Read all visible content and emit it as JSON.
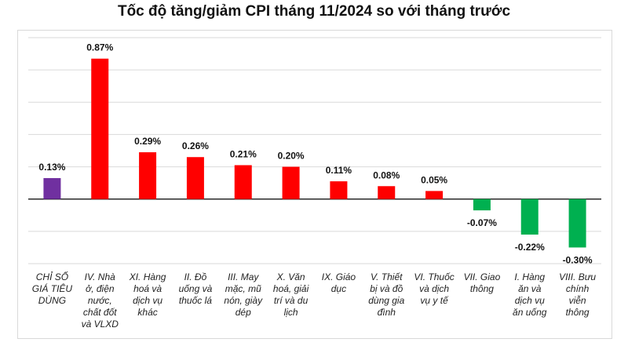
{
  "chart_data": {
    "type": "bar",
    "title": "Tốc độ tăng/giảm CPI tháng 11/2024 so với tháng trước",
    "categories": [
      "CHỈ SỐ GIÁ TIÊU DÙNG",
      "IV. Nhà ở, điện nước, chất đốt và VLXD",
      "XI. Hàng hoá và dịch vụ khác",
      "II. Đồ uống và thuốc lá",
      "III. May mặc, mũ nón, giày dép",
      "X. Văn hoá, giải trí và du lịch",
      "IX. Giáo dục",
      "V. Thiết bị và đồ dùng gia đình",
      "VI. Thuốc và dịch vụ y tế",
      "VII. Giao thông",
      "I. Hàng ăn và dịch vụ ăn uống",
      "VIII. Bưu chính viễn thông"
    ],
    "category_lines": [
      [
        "CHỈ SỐ",
        "GIÁ TIÊU",
        "DÙNG"
      ],
      [
        "IV. Nhà",
        "ở, điện",
        "nước,",
        "chất đốt",
        "và VLXD"
      ],
      [
        "XI. Hàng",
        "hoá và",
        "dịch vụ",
        "khác"
      ],
      [
        "II. Đồ",
        "uống và",
        "thuốc lá"
      ],
      [
        "III. May",
        "mặc, mũ",
        "nón, giày",
        "dép"
      ],
      [
        "X. Văn",
        "hoá, giải",
        "trí và du",
        "lịch"
      ],
      [
        "IX. Giáo",
        "dục"
      ],
      [
        "V. Thiết",
        "bị và đồ",
        "dùng gia",
        "đình"
      ],
      [
        "VI. Thuốc",
        "và dịch",
        "vụ y tế"
      ],
      [
        "VII. Giao",
        "thông"
      ],
      [
        "I. Hàng",
        "ăn và",
        "dịch vụ",
        "ăn uống"
      ],
      [
        "VIII. Bưu",
        "chính",
        "viễn",
        "thông"
      ]
    ],
    "values": [
      0.13,
      0.87,
      0.29,
      0.26,
      0.21,
      0.2,
      0.11,
      0.08,
      0.05,
      -0.07,
      -0.22,
      -0.3
    ],
    "data_labels": [
      "0.13%",
      "0.87%",
      "0.29%",
      "0.26%",
      "0.21%",
      "0.20%",
      "0.11%",
      "0.08%",
      "0.05%",
      "-0.07%",
      "-0.22%",
      "-0.30%"
    ],
    "colors": {
      "total": "#7030a0",
      "increase": "#ff0000",
      "decrease": "#00b050",
      "grid": "#d9d9d9",
      "axis": "#000000"
    },
    "ylim": [
      -0.4,
      1.0
    ],
    "y_gridlines": [
      -0.4,
      -0.2,
      0,
      0.2,
      0.4,
      0.6,
      0.8,
      1.0
    ],
    "grid": true,
    "xlabel": "",
    "ylabel": ""
  }
}
